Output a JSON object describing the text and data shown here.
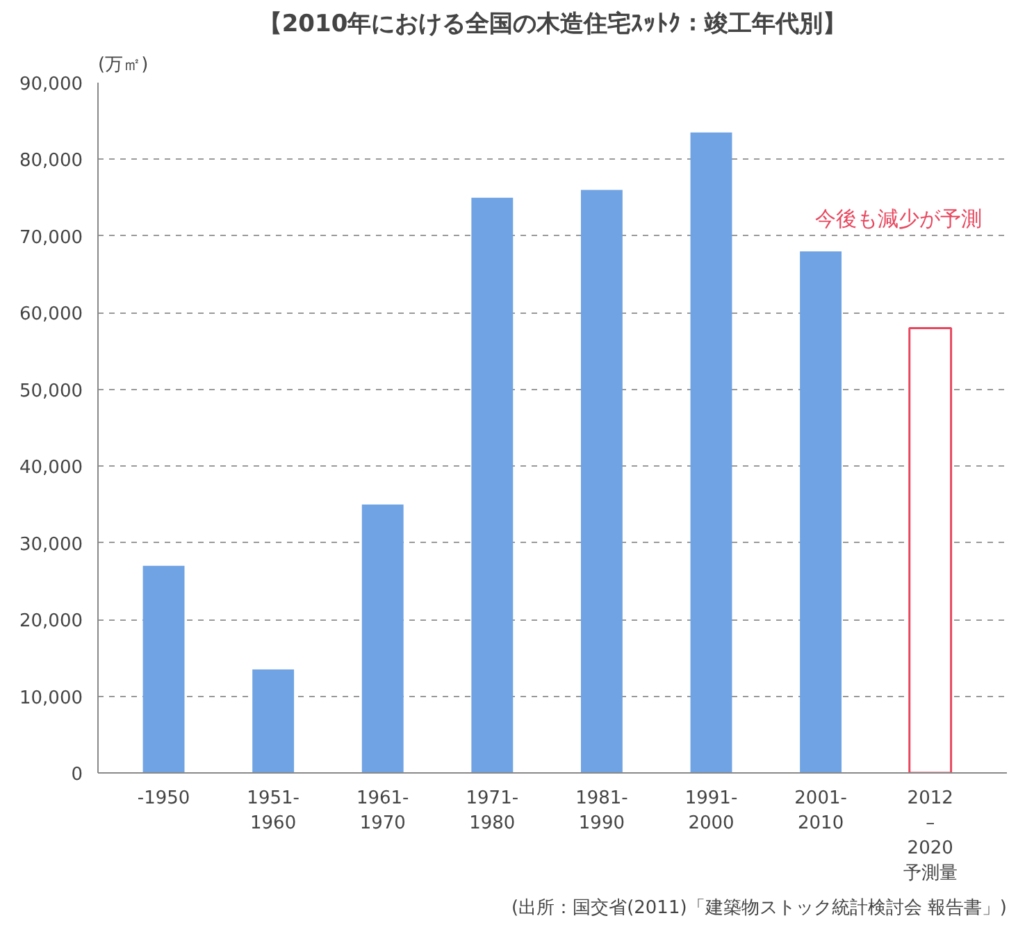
{
  "chart_data": {
    "type": "bar",
    "title": "【2010年における全国の木造住宅ｽｯﾄｸ：竣工年代別】",
    "ylabel": "(万㎡)",
    "categories": [
      "-1950",
      "1951-\n1960",
      "1961-\n1970",
      "1971-\n1980",
      "1981-\n1990",
      "1991-\n2000",
      "2001-\n2010",
      "2012\n–\n2020\n予測量"
    ],
    "series": [
      {
        "color": "#6fa3e3",
        "values": [
          27000,
          13500,
          35000,
          75000,
          76000,
          83500,
          68000,
          null
        ]
      },
      {
        "color": "#e8475e",
        "values": [
          null,
          null,
          null,
          null,
          null,
          null,
          null,
          58000
        ]
      }
    ],
    "ylim": [
      0,
      90000
    ],
    "yticks": [
      {
        "value": 0,
        "label": "0"
      },
      {
        "value": 10000,
        "label": "10,000"
      },
      {
        "value": 20000,
        "label": "20,000"
      },
      {
        "value": 30000,
        "label": "30,000"
      },
      {
        "value": 40000,
        "label": "40,000"
      },
      {
        "value": 50000,
        "label": "50,000"
      },
      {
        "value": 60000,
        "label": "60,000"
      },
      {
        "value": 70000,
        "label": "70,000"
      },
      {
        "value": 80000,
        "label": "80,000"
      },
      {
        "value": 90000,
        "label": "90,000"
      }
    ],
    "grid": "y",
    "annotations": [
      "今後も減少が予測",
      "(出所：国交省(2011)「建築物ストック統計検討会 報告書」)"
    ]
  }
}
